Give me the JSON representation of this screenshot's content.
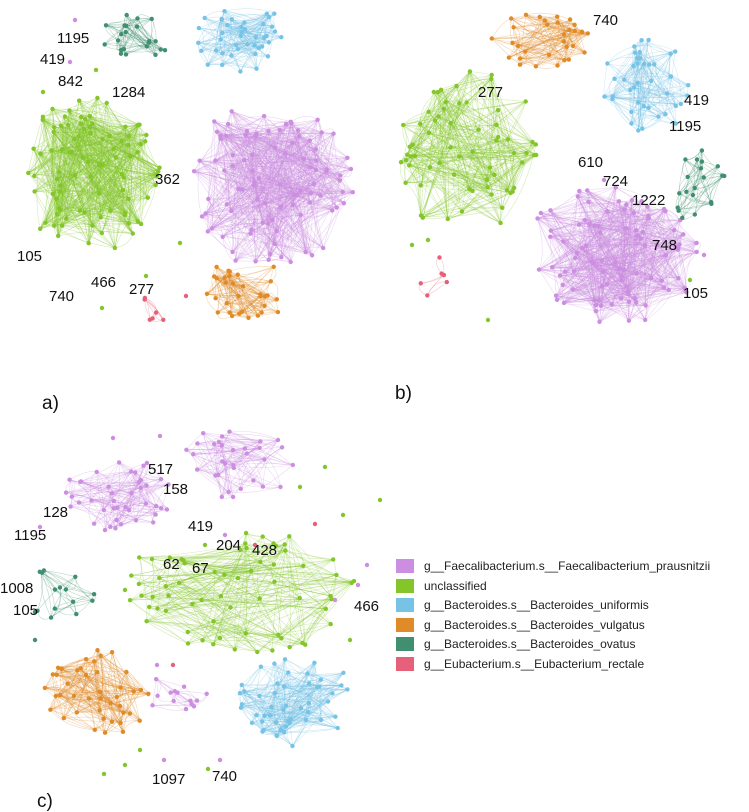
{
  "panels": [
    {
      "id": "a",
      "label": "a)",
      "node_labels": [
        "1195",
        "419",
        "842",
        "1284",
        "362",
        "105",
        "466",
        "740",
        "277"
      ]
    },
    {
      "id": "b",
      "label": "b)",
      "node_labels": [
        "740",
        "277",
        "419",
        "1195",
        "610",
        "724",
        "1222",
        "748",
        "105"
      ]
    },
    {
      "id": "c",
      "label": "c)",
      "node_labels": [
        "517",
        "158",
        "128",
        "1195",
        "419",
        "204",
        "428",
        "62",
        "67",
        "1008",
        "105",
        "466",
        "1097",
        "740"
      ]
    }
  ],
  "legend": [
    {
      "label": "g__Faecalibacterium.s__Faecalibacterium_prausnitzii",
      "color": "#cc8ee0"
    },
    {
      "label": "unclassified",
      "color": "#84c52a"
    },
    {
      "label": "g__Bacteroides.s__Bacteroides_uniformis",
      "color": "#77c3e6"
    },
    {
      "label": "g__Bacteroides.s__Bacteroides_vulgatus",
      "color": "#e08a28"
    },
    {
      "label": "g__Bacteroides.s__Bacteroides_ovatus",
      "color": "#3f8f70"
    },
    {
      "label": "g__Eubacterium.s__Eubacterium_rectale",
      "color": "#e6607a"
    }
  ]
}
